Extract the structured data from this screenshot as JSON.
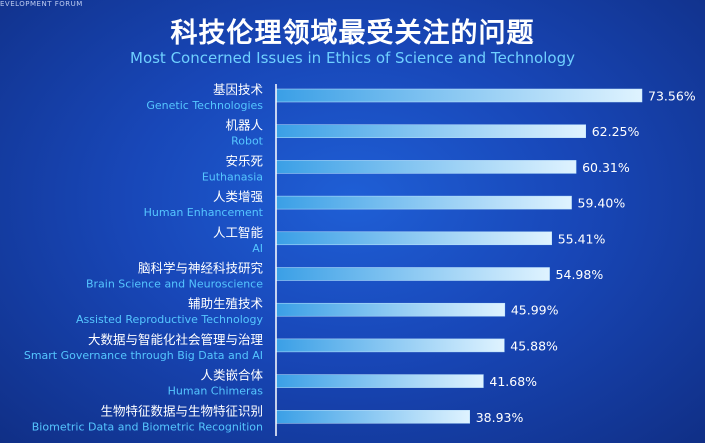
{
  "header": {
    "corner_label": "EVELOPMENT FORUM",
    "title_zh": "科技伦理领域最受关注的问题",
    "title_en": "Most Concerned Issues in Ethics of Science and Technology"
  },
  "colors": {
    "bar_fill_start": "#3a9fe6",
    "bar_fill_end": "#dff3ff",
    "axis_line": "#ffffff",
    "english_label": "#55c6ff"
  },
  "chart_data": {
    "type": "bar",
    "orientation": "horizontal",
    "title": "科技伦理领域最受关注的问题",
    "subtitle": "Most Concerned Issues in Ethics of Science and Technology",
    "categories": [
      {
        "zh": "基因技术",
        "en": "Genetic Technologies"
      },
      {
        "zh": "机器人",
        "en": "Robot"
      },
      {
        "zh": "安乐死",
        "en": "Euthanasia"
      },
      {
        "zh": "人类增强",
        "en": "Human Enhancement"
      },
      {
        "zh": "人工智能",
        "en": "AI"
      },
      {
        "zh": "脑科学与神经科技研究",
        "en": "Brain Science and Neuroscience"
      },
      {
        "zh": "辅助生殖技术",
        "en": "Assisted Reproductive Technology"
      },
      {
        "zh": "大数据与智能化社会管理与治理",
        "en": "Smart Governance through Big Data and AI"
      },
      {
        "zh": "人类嵌合体",
        "en": "Human Chimeras"
      },
      {
        "zh": "生物特征数据与生物特征识别",
        "en": "Biometric Data and Biometric Recognition"
      }
    ],
    "values": [
      73.56,
      62.25,
      60.31,
      59.4,
      55.41,
      54.98,
      45.99,
      45.88,
      41.68,
      38.93
    ],
    "value_labels": [
      "73.56%",
      "62.25%",
      "60.31%",
      "59.40%",
      "55.41%",
      "54.98%",
      "45.99%",
      "45.88%",
      "41.68%",
      "38.93%"
    ],
    "xlim": [
      0,
      73.56
    ],
    "grid": false,
    "legend": "none"
  }
}
